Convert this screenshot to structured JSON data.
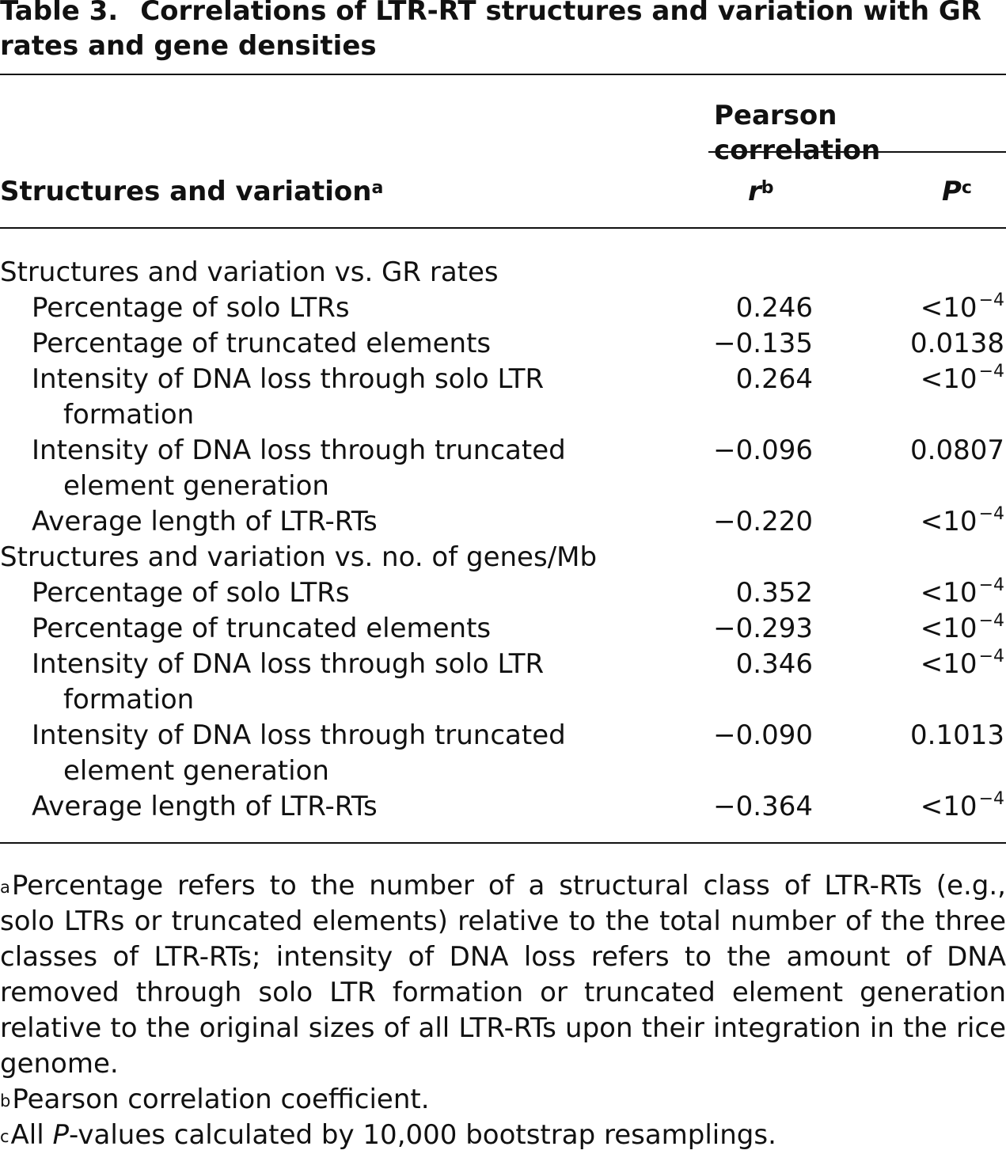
{
  "title": {
    "label": "Table 3.",
    "text": "Correlations of LTR-RT structures and variation with GR rates and gene densities"
  },
  "header": {
    "span_label": "Pearson correlation",
    "col1": "Structures and variation",
    "col1_sup": "a",
    "col_r": "r",
    "col_r_sup": "b",
    "col_p": "P",
    "col_p_sup": "c"
  },
  "rows": [
    {
      "type": "group",
      "label": "Structures and variation vs. GR rates"
    },
    {
      "type": "sub",
      "label": "Percentage of solo LTRs",
      "r": "0.246",
      "p_base": "<10",
      "p_exp": "−4"
    },
    {
      "type": "sub",
      "label": "Percentage of truncated elements",
      "r": "−0.135",
      "p": "0.0138"
    },
    {
      "type": "sub",
      "label": "Intensity of DNA loss through solo LTR",
      "cont": "formation",
      "r": "0.264",
      "p_base": "<10",
      "p_exp": "−4"
    },
    {
      "type": "sub",
      "label": "Intensity of DNA loss through truncated",
      "cont": "element generation",
      "r": "−0.096",
      "p": "0.0807"
    },
    {
      "type": "sub",
      "label": "Average length of LTR-RTs",
      "r": "−0.220",
      "p_base": "<10",
      "p_exp": "−4"
    },
    {
      "type": "group",
      "label": "Structures and variation vs. no. of genes/Mb"
    },
    {
      "type": "sub",
      "label": "Percentage of solo LTRs",
      "r": "0.352",
      "p_base": "<10",
      "p_exp": "−4"
    },
    {
      "type": "sub",
      "label": "Percentage of truncated elements",
      "r": "−0.293",
      "p_base": "<10",
      "p_exp": "−4"
    },
    {
      "type": "sub",
      "label": "Intensity of DNA loss through solo LTR",
      "cont": "formation",
      "r": "0.346",
      "p_base": "<10",
      "p_exp": "−4"
    },
    {
      "type": "sub",
      "label": "Intensity of DNA loss through truncated",
      "cont": "element generation",
      "r": "−0.090",
      "p": "0.1013"
    },
    {
      "type": "sub",
      "label": "Average length of LTR-RTs",
      "r": "−0.364",
      "p_base": "<10",
      "p_exp": "−4"
    }
  ],
  "footnotes": {
    "a_mark": "a",
    "a_text": "Percentage refers to the number of a structural class of LTR-RTs (e.g., solo LTRs or truncated elements) relative to the total number of the three classes of LTR-RTs; intensity of DNA loss refers to the amount of DNA removed through solo LTR formation or truncated element generation relative to the original sizes of all LTR-RTs upon their integration in the rice genome.",
    "b_mark": "b",
    "b_text": "Pearson correlation coefficient.",
    "c_mark": "c",
    "c_pre": "All ",
    "c_italic": "P",
    "c_post": "-values calculated by 10,000 bootstrap resamplings."
  }
}
